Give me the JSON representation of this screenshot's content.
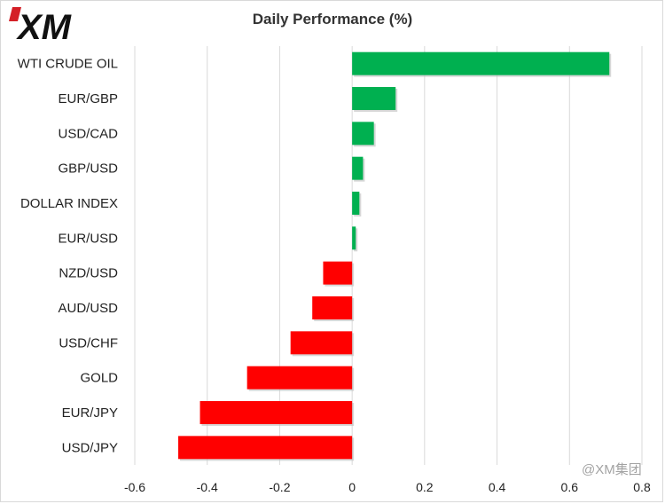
{
  "logo": {
    "text": "XM"
  },
  "watermark": "@XM集团",
  "colors": {
    "positive": "#00b050",
    "negative": "#ff0000",
    "grid": "#d9d9d9"
  },
  "chart_data": {
    "type": "bar",
    "orientation": "horizontal",
    "title": "Daily Performance  (%)",
    "categories": [
      "WTI CRUDE OIL",
      "EUR/GBP",
      "USD/CAD",
      "GBP/USD",
      "DOLLAR INDEX",
      "EUR/USD",
      "NZD/USD",
      "AUD/USD",
      "USD/CHF",
      "GOLD",
      "EUR/JPY",
      "USD/JPY"
    ],
    "values": [
      0.71,
      0.12,
      0.06,
      0.03,
      0.02,
      0.01,
      -0.08,
      -0.11,
      -0.17,
      -0.29,
      -0.42,
      -0.48
    ],
    "xlim": [
      -0.6,
      0.8
    ],
    "xticks": [
      -0.6,
      -0.4,
      -0.2,
      0,
      0.2,
      0.4,
      0.6,
      0.8
    ],
    "xtick_labels": [
      "-0.6",
      "-0.4",
      "-0.2",
      "0",
      "0.2",
      "0.4",
      "0.6",
      "0.8"
    ],
    "grid": "vertical",
    "legend": "none"
  }
}
